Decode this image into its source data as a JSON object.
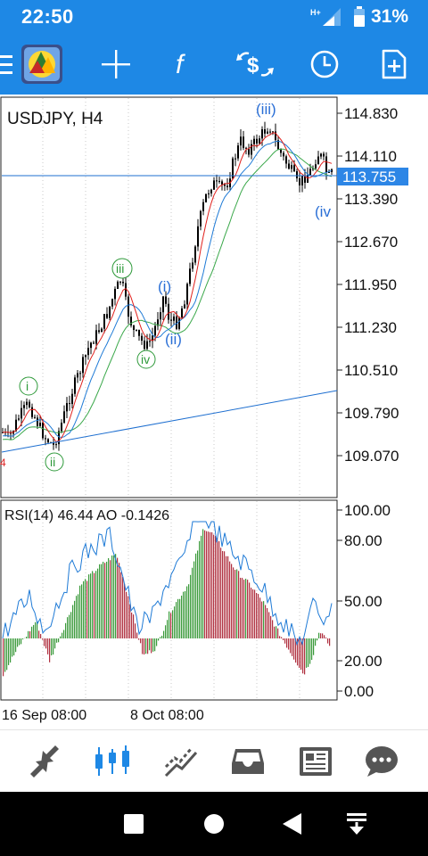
{
  "status_bar": {
    "time": "22:50",
    "network_label": "H+",
    "battery_percent": "31%"
  },
  "toolbar": {
    "icons": [
      "menu-icon",
      "metatrader-logo-icon",
      "crosshair-icon",
      "indicators-f-icon",
      "trade-dollar-icon",
      "clock-period-icon",
      "add-object-icon"
    ]
  },
  "chart": {
    "symbol_label": "USDJPY, H4",
    "current_price_label": "113.755",
    "price_axis_labels": [
      "114.830",
      "114.110",
      "113.390",
      "112.670",
      "111.950",
      "111.230",
      "110.510",
      "109.790",
      "109.070"
    ],
    "left_edge_marker": "4",
    "wave_labels": [
      {
        "text": "i",
        "style": "circled-green"
      },
      {
        "text": "ii",
        "style": "circled-green"
      },
      {
        "text": "iii",
        "style": "circled-green"
      },
      {
        "text": "iv",
        "style": "circled-green"
      },
      {
        "text": "(i)",
        "style": "blue"
      },
      {
        "text": "(ii)",
        "style": "blue"
      },
      {
        "text": "(iii)",
        "style": "blue"
      },
      {
        "text": "(iv",
        "style": "blue"
      }
    ],
    "colors": {
      "fast_ma": "#e0201c",
      "medium_ma": "#1e7ad6",
      "slow_ma": "#3aa84a",
      "candles": "#000000",
      "price_line": "#1e6fd0",
      "trendline": "#1e6fd0",
      "price_badge_bg": "#2d86e6"
    }
  },
  "indicator": {
    "label": "RSI(14) 46.44 AO -0.1426",
    "axis_labels": [
      "100.00",
      "80.00",
      "50.00",
      "20.00",
      "0.00"
    ],
    "colors": {
      "rsi_line": "#1e7ad6",
      "ao_up": "#3a9a3a",
      "ao_down": "#b03040"
    }
  },
  "time_axis": {
    "labels": [
      "16 Sep 08:00",
      "8 Oct 08:00"
    ]
  },
  "bottom_nav": {
    "icons": [
      "quotes-arrows-icon",
      "chart-candles-icon",
      "trade-icon",
      "history-inbox-icon",
      "news-icon",
      "chat-icon"
    ],
    "active": "chart-candles-icon"
  },
  "android_nav": {
    "icons": [
      "recents-square-icon",
      "home-circle-icon",
      "back-triangle-icon",
      "notifications-down-icon"
    ]
  }
}
